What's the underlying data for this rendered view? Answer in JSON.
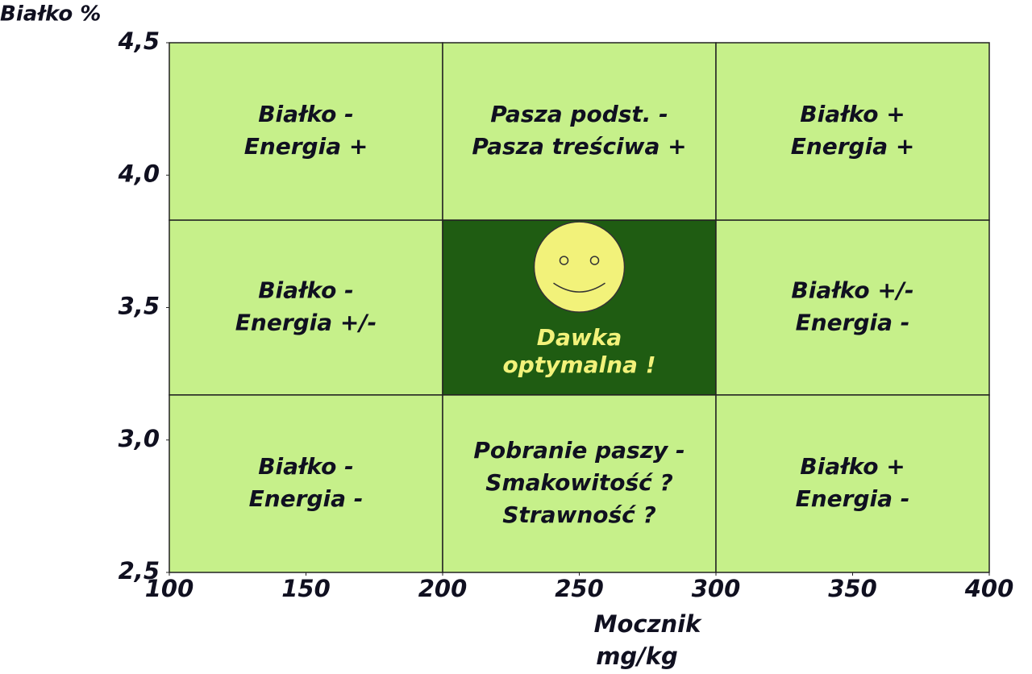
{
  "chart_data": {
    "type": "regions",
    "y_title": "Białko %",
    "x_title": [
      "Mocznik",
      "mg/kg"
    ],
    "xlim": [
      100,
      400
    ],
    "xticks": [
      100,
      150,
      200,
      250,
      300,
      350,
      400
    ],
    "ylim": [
      2.5,
      4.5
    ],
    "yticks": [
      {
        "value": 4.5,
        "label": "4,5"
      },
      {
        "value": 4.0,
        "label": "4,0"
      },
      {
        "value": 3.5,
        "label": "3,5"
      },
      {
        "value": 3.0,
        "label": "3,0"
      },
      {
        "value": 2.5,
        "label": "2,5"
      }
    ],
    "regions": [
      {
        "x": [
          100,
          200
        ],
        "y": [
          3.83,
          4.5
        ],
        "color": "#c6f08a",
        "text_color": "#101020",
        "lines": [
          "Białko -",
          "Energia +"
        ]
      },
      {
        "x": [
          200,
          300
        ],
        "y": [
          3.83,
          4.5
        ],
        "color": "#c6f08a",
        "text_color": "#101020",
        "lines": [
          "Pasza podst. -",
          "Pasza treściwa +"
        ]
      },
      {
        "x": [
          300,
          400
        ],
        "y": [
          3.83,
          4.5
        ],
        "color": "#c6f08a",
        "text_color": "#101020",
        "lines": [
          "Białko +",
          "Energia +"
        ]
      },
      {
        "x": [
          100,
          200
        ],
        "y": [
          3.17,
          3.83
        ],
        "color": "#c6f08a",
        "text_color": "#101020",
        "lines": [
          "Białko -",
          "Energia +/-"
        ]
      },
      {
        "x": [
          200,
          300
        ],
        "y": [
          3.17,
          3.83
        ],
        "color": "#1f5c12",
        "text_color": "#f2f27a",
        "marker": "smiley",
        "lines": [
          "Dawka",
          "optymalna  !"
        ]
      },
      {
        "x": [
          300,
          400
        ],
        "y": [
          3.17,
          3.83
        ],
        "color": "#c6f08a",
        "text_color": "#101020",
        "lines": [
          "Białko +/-",
          "Energia -"
        ]
      },
      {
        "x": [
          100,
          200
        ],
        "y": [
          2.5,
          3.17
        ],
        "color": "#c6f08a",
        "text_color": "#101020",
        "lines": [
          "Białko -",
          "Energia -"
        ]
      },
      {
        "x": [
          200,
          300
        ],
        "y": [
          2.5,
          3.17
        ],
        "color": "#c6f08a",
        "text_color": "#101020",
        "lines": [
          "Pobranie paszy -",
          "Smakowitość ?",
          "Strawność ?"
        ]
      },
      {
        "x": [
          300,
          400
        ],
        "y": [
          2.5,
          3.17
        ],
        "color": "#c6f08a",
        "text_color": "#101020",
        "lines": [
          "Białko +",
          "Energia -"
        ]
      }
    ]
  }
}
